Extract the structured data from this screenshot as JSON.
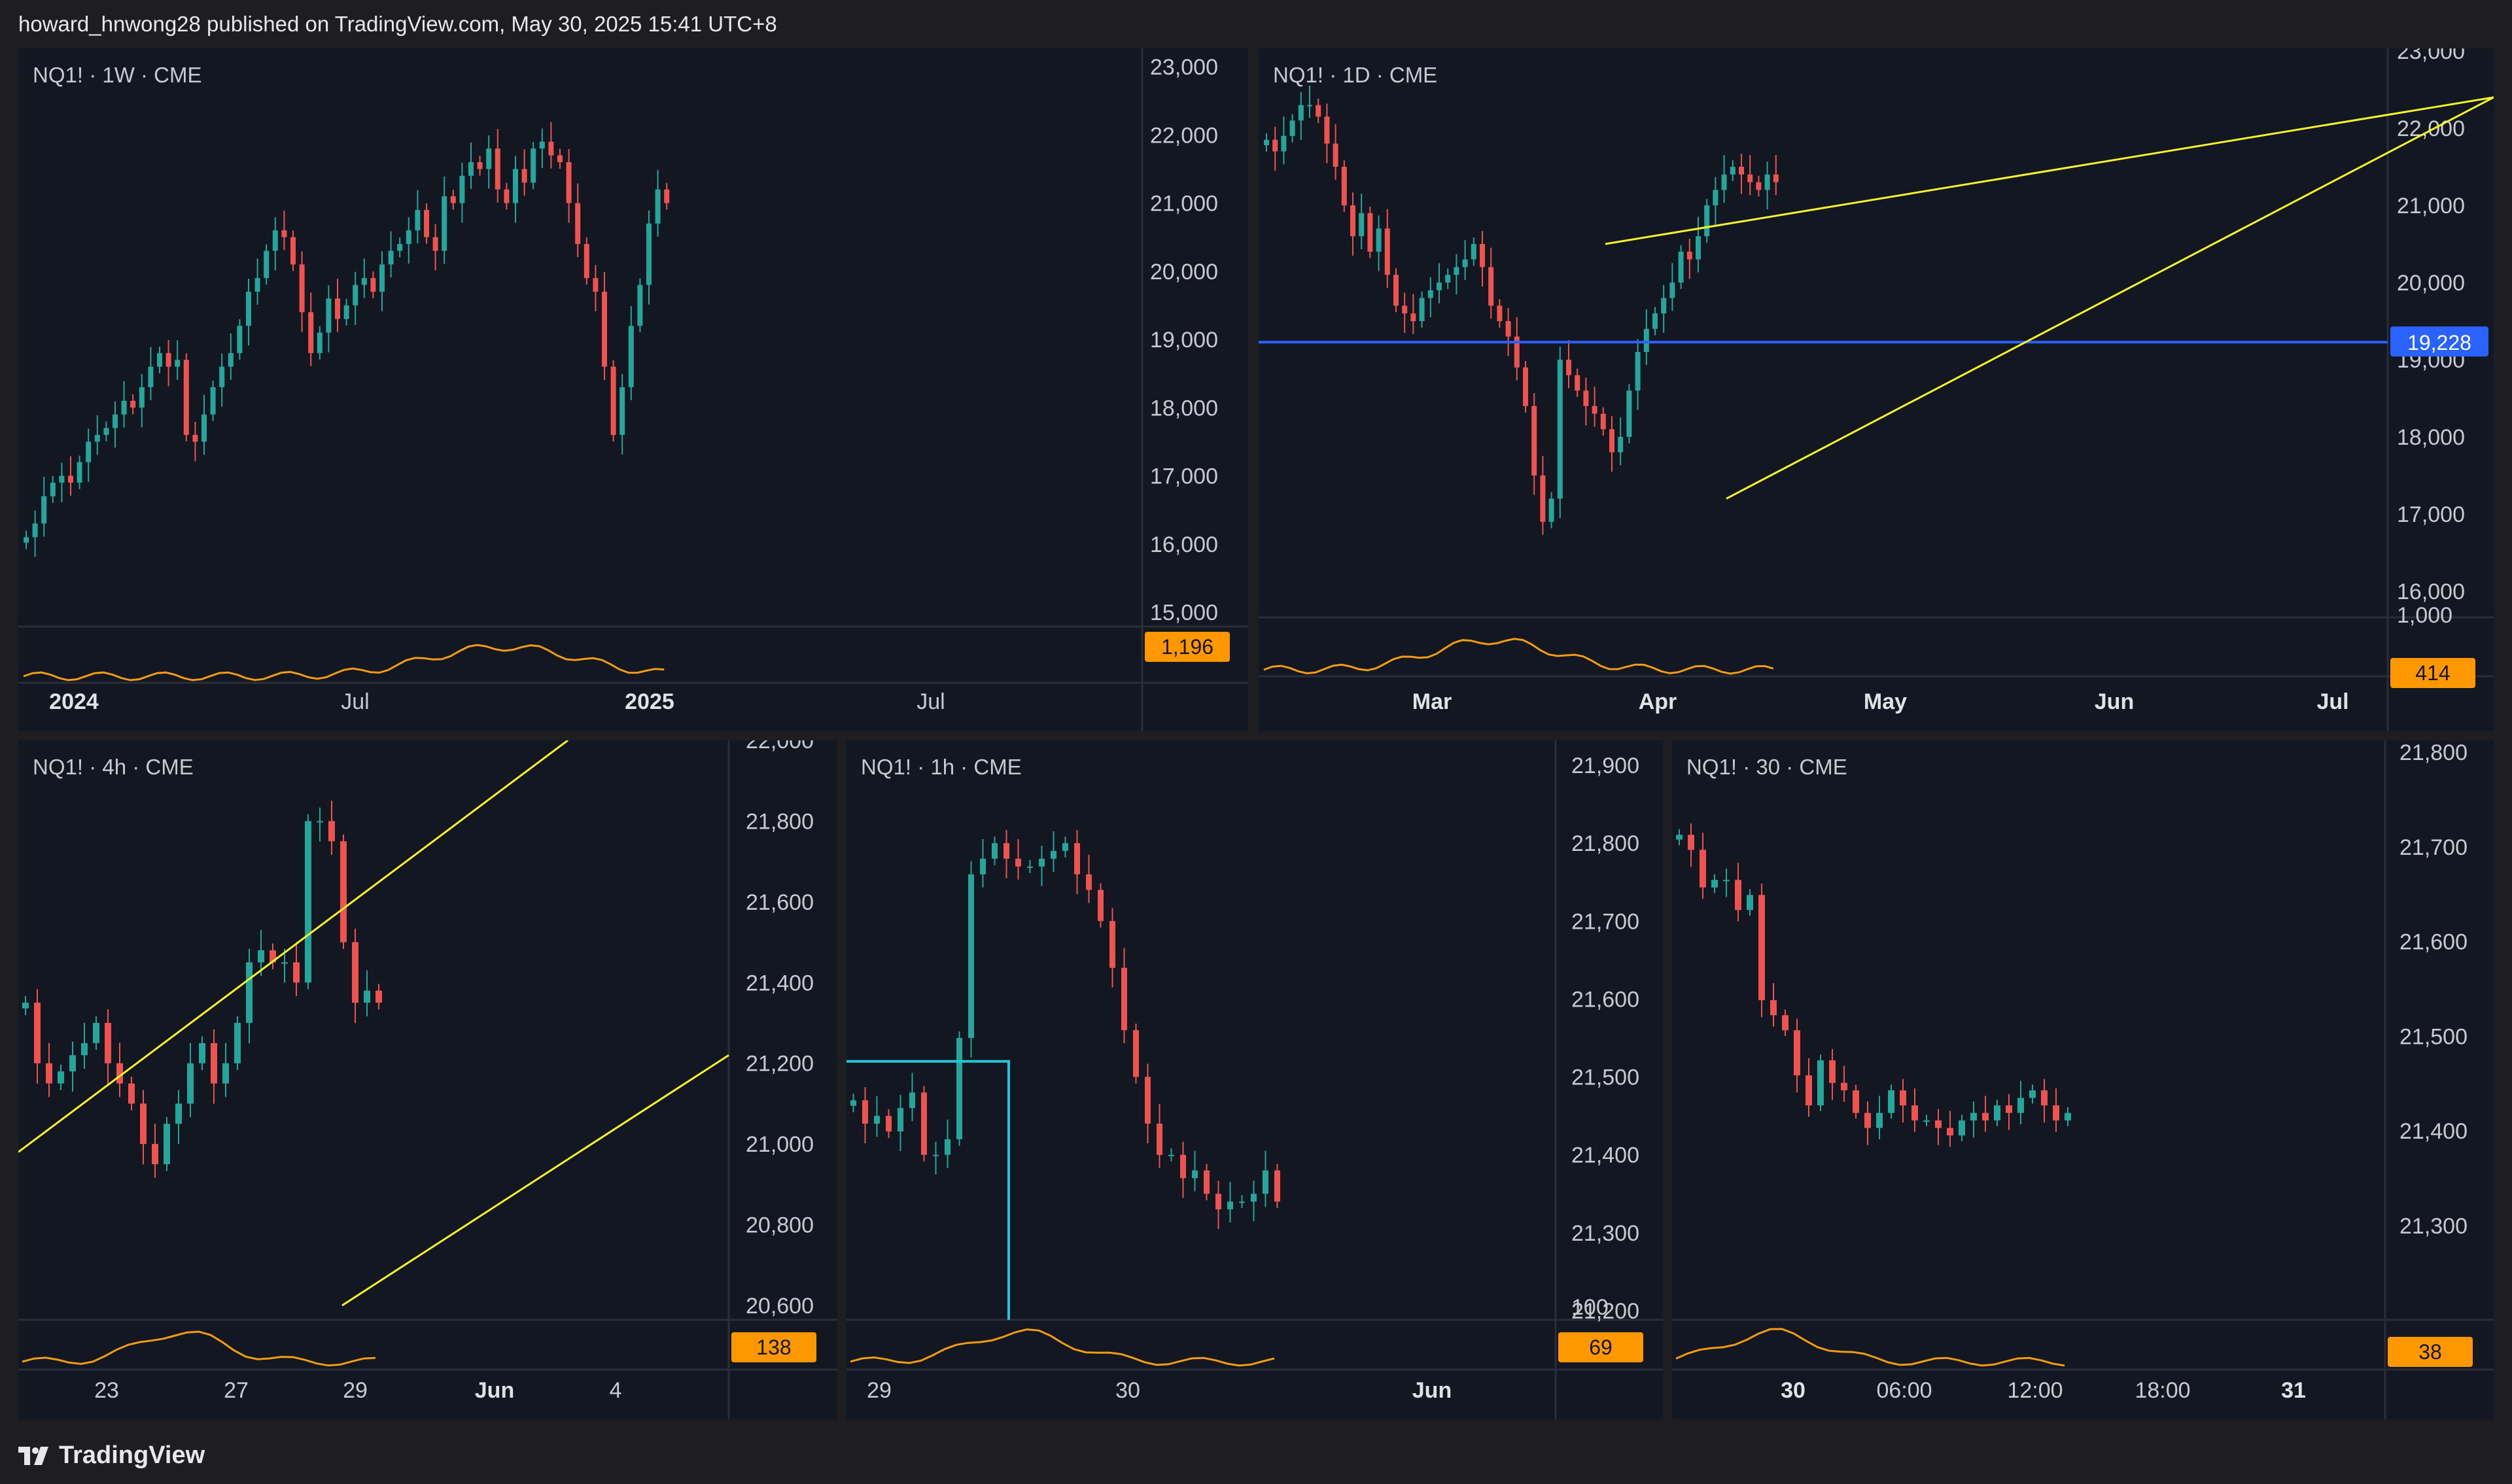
{
  "header": {
    "text": "howard_hnwong28 published on TradingView.com, May 30, 2025 15:41 UTC+8"
  },
  "footer": {
    "brand": "TradingView",
    "logo_icon": "tradingview-logo-icon"
  },
  "colors": {
    "bg": "#131722",
    "up": "#26a69a",
    "down": "#ef5350",
    "volume": "#f39c12",
    "trend": "#f5f52c",
    "level": "#2962ff",
    "box": "#22c6d8",
    "badge": "#ff9800"
  },
  "chart_data": [
    {
      "type": "candlestick",
      "label": "NQ1! · 1W · CME",
      "y_ticks": [
        "23,000",
        "22,000",
        "21,000",
        "20,000",
        "19,000",
        "18,000",
        "17,000",
        "16,000",
        "15,000"
      ],
      "ylim": [
        15000,
        23000
      ],
      "x_ticks": [
        {
          "label": "2024",
          "bold": true
        },
        {
          "label": "Jul",
          "bold": false
        },
        {
          "label": "2025",
          "bold": true
        },
        {
          "label": "Jul",
          "bold": false
        }
      ],
      "indicator_value": "1,196",
      "series": [
        {
          "name": "NQ1!",
          "values": [
            16100,
            16300,
            16700,
            16900,
            17000,
            16900,
            17200,
            17500,
            17600,
            17700,
            17900,
            18100,
            18000,
            18300,
            18600,
            18800,
            18600,
            18700,
            17600,
            17500,
            17900,
            18300,
            18600,
            18800,
            19200,
            19700,
            19900,
            20300,
            20600,
            20500,
            20100,
            19400,
            18800,
            19100,
            19600,
            19300,
            19500,
            19800,
            19900,
            19700,
            20100,
            20300,
            20400,
            20600,
            20900,
            20500,
            20300,
            21100,
            21000,
            21400,
            21600,
            21500,
            21800,
            21200,
            21000,
            21500,
            21300,
            21800,
            21900,
            21700,
            21600,
            21000,
            20400,
            19900,
            19700,
            18600,
            17600,
            18300,
            19200,
            19800,
            20700,
            21200,
            21000
          ]
        }
      ]
    },
    {
      "type": "candlestick",
      "label": "NQ1! · 1D · CME",
      "y_ticks": [
        "23,000",
        "22,000",
        "21,000",
        "20,000",
        "19,000",
        "18,000",
        "17,000",
        "16,000"
      ],
      "ylim": [
        16000,
        23000
      ],
      "x_ticks": [
        {
          "label": "Mar",
          "bold": true
        },
        {
          "label": "Apr",
          "bold": true
        },
        {
          "label": "May",
          "bold": true
        },
        {
          "label": "Jun",
          "bold": true
        },
        {
          "label": "Jul",
          "bold": true
        }
      ],
      "price_level": {
        "value": 19228,
        "label": "19,228"
      },
      "indicator_top": "1,000",
      "indicator_value": "414",
      "series": [
        {
          "name": "NQ1!",
          "values": [
            21850,
            21700,
            21900,
            22100,
            22300,
            22300,
            22150,
            21800,
            21500,
            21000,
            20600,
            20900,
            20400,
            20700,
            20100,
            19700,
            19600,
            19500,
            19800,
            19900,
            20000,
            20100,
            20200,
            20300,
            20500,
            20200,
            19700,
            19500,
            19300,
            18900,
            18400,
            17500,
            16900,
            17200,
            19000,
            18800,
            18600,
            18400,
            18300,
            18100,
            17800,
            18000,
            18600,
            19100,
            19400,
            19600,
            19800,
            20000,
            20400,
            20300,
            20600,
            21000,
            21200,
            21400,
            21500,
            21400,
            21300,
            21200,
            21400,
            21300
          ]
        }
      ]
    },
    {
      "type": "candlestick",
      "label": "NQ1! · 4h · CME",
      "y_ticks": [
        "22,000",
        "21,800",
        "21,600",
        "21,400",
        "21,200",
        "21,000",
        "20,800",
        "20,600"
      ],
      "ylim": [
        20600,
        22000
      ],
      "x_ticks": [
        {
          "label": "23",
          "bold": false
        },
        {
          "label": "27",
          "bold": false
        },
        {
          "label": "29",
          "bold": false
        },
        {
          "label": "Jun",
          "bold": true
        },
        {
          "label": "4",
          "bold": false
        }
      ],
      "indicator_value": "138",
      "series": [
        {
          "name": "NQ1!",
          "values": [
            21350,
            21200,
            21150,
            21180,
            21220,
            21250,
            21300,
            21200,
            21150,
            21100,
            21000,
            20950,
            21050,
            21100,
            21200,
            21250,
            21150,
            21200,
            21300,
            21450,
            21480,
            21450,
            21450,
            21400,
            21800,
            21800,
            21750,
            21500,
            21350,
            21380,
            21350
          ]
        }
      ]
    },
    {
      "type": "candlestick",
      "label": "NQ1! · 1h · CME",
      "y_ticks": [
        "21,900",
        "21,800",
        "21,700",
        "21,600",
        "21,500",
        "21,400",
        "21,300",
        "21,200"
      ],
      "ylim": [
        21200,
        21900
      ],
      "x_ticks": [
        {
          "label": "29",
          "bold": false
        },
        {
          "label": "30",
          "bold": false
        },
        {
          "label": "Jun",
          "bold": true
        }
      ],
      "indicator_top": "100",
      "indicator_value": "69",
      "series": [
        {
          "name": "NQ1!",
          "values": [
            21470,
            21440,
            21450,
            21430,
            21460,
            21480,
            21400,
            21400,
            21420,
            21550,
            21760,
            21780,
            21800,
            21780,
            21770,
            21770,
            21780,
            21790,
            21800,
            21760,
            21740,
            21700,
            21640,
            21560,
            21500,
            21440,
            21400,
            21400,
            21370,
            21380,
            21350,
            21330,
            21340,
            21340,
            21350,
            21380,
            21340
          ]
        }
      ]
    },
    {
      "type": "candlestick",
      "label": "NQ1! · 30 · CME",
      "y_ticks": [
        "21,800",
        "21,700",
        "21,600",
        "21,500",
        "21,400",
        "21,300"
      ],
      "ylim": [
        21200,
        21830
      ],
      "x_ticks": [
        {
          "label": "30",
          "bold": true
        },
        {
          "label": "06:00",
          "bold": false
        },
        {
          "label": "12:00",
          "bold": false
        },
        {
          "label": "18:00",
          "bold": false
        },
        {
          "label": "31",
          "bold": true
        }
      ],
      "indicator_value": "38",
      "series": [
        {
          "name": "NQ1!",
          "values": [
            21720,
            21700,
            21650,
            21660,
            21660,
            21620,
            21640,
            21500,
            21480,
            21460,
            21400,
            21360,
            21420,
            21390,
            21380,
            21350,
            21330,
            21350,
            21380,
            21360,
            21340,
            21340,
            21330,
            21320,
            21340,
            21350,
            21340,
            21360,
            21350,
            21370,
            21380,
            21360,
            21340,
            21350
          ]
        }
      ]
    }
  ]
}
